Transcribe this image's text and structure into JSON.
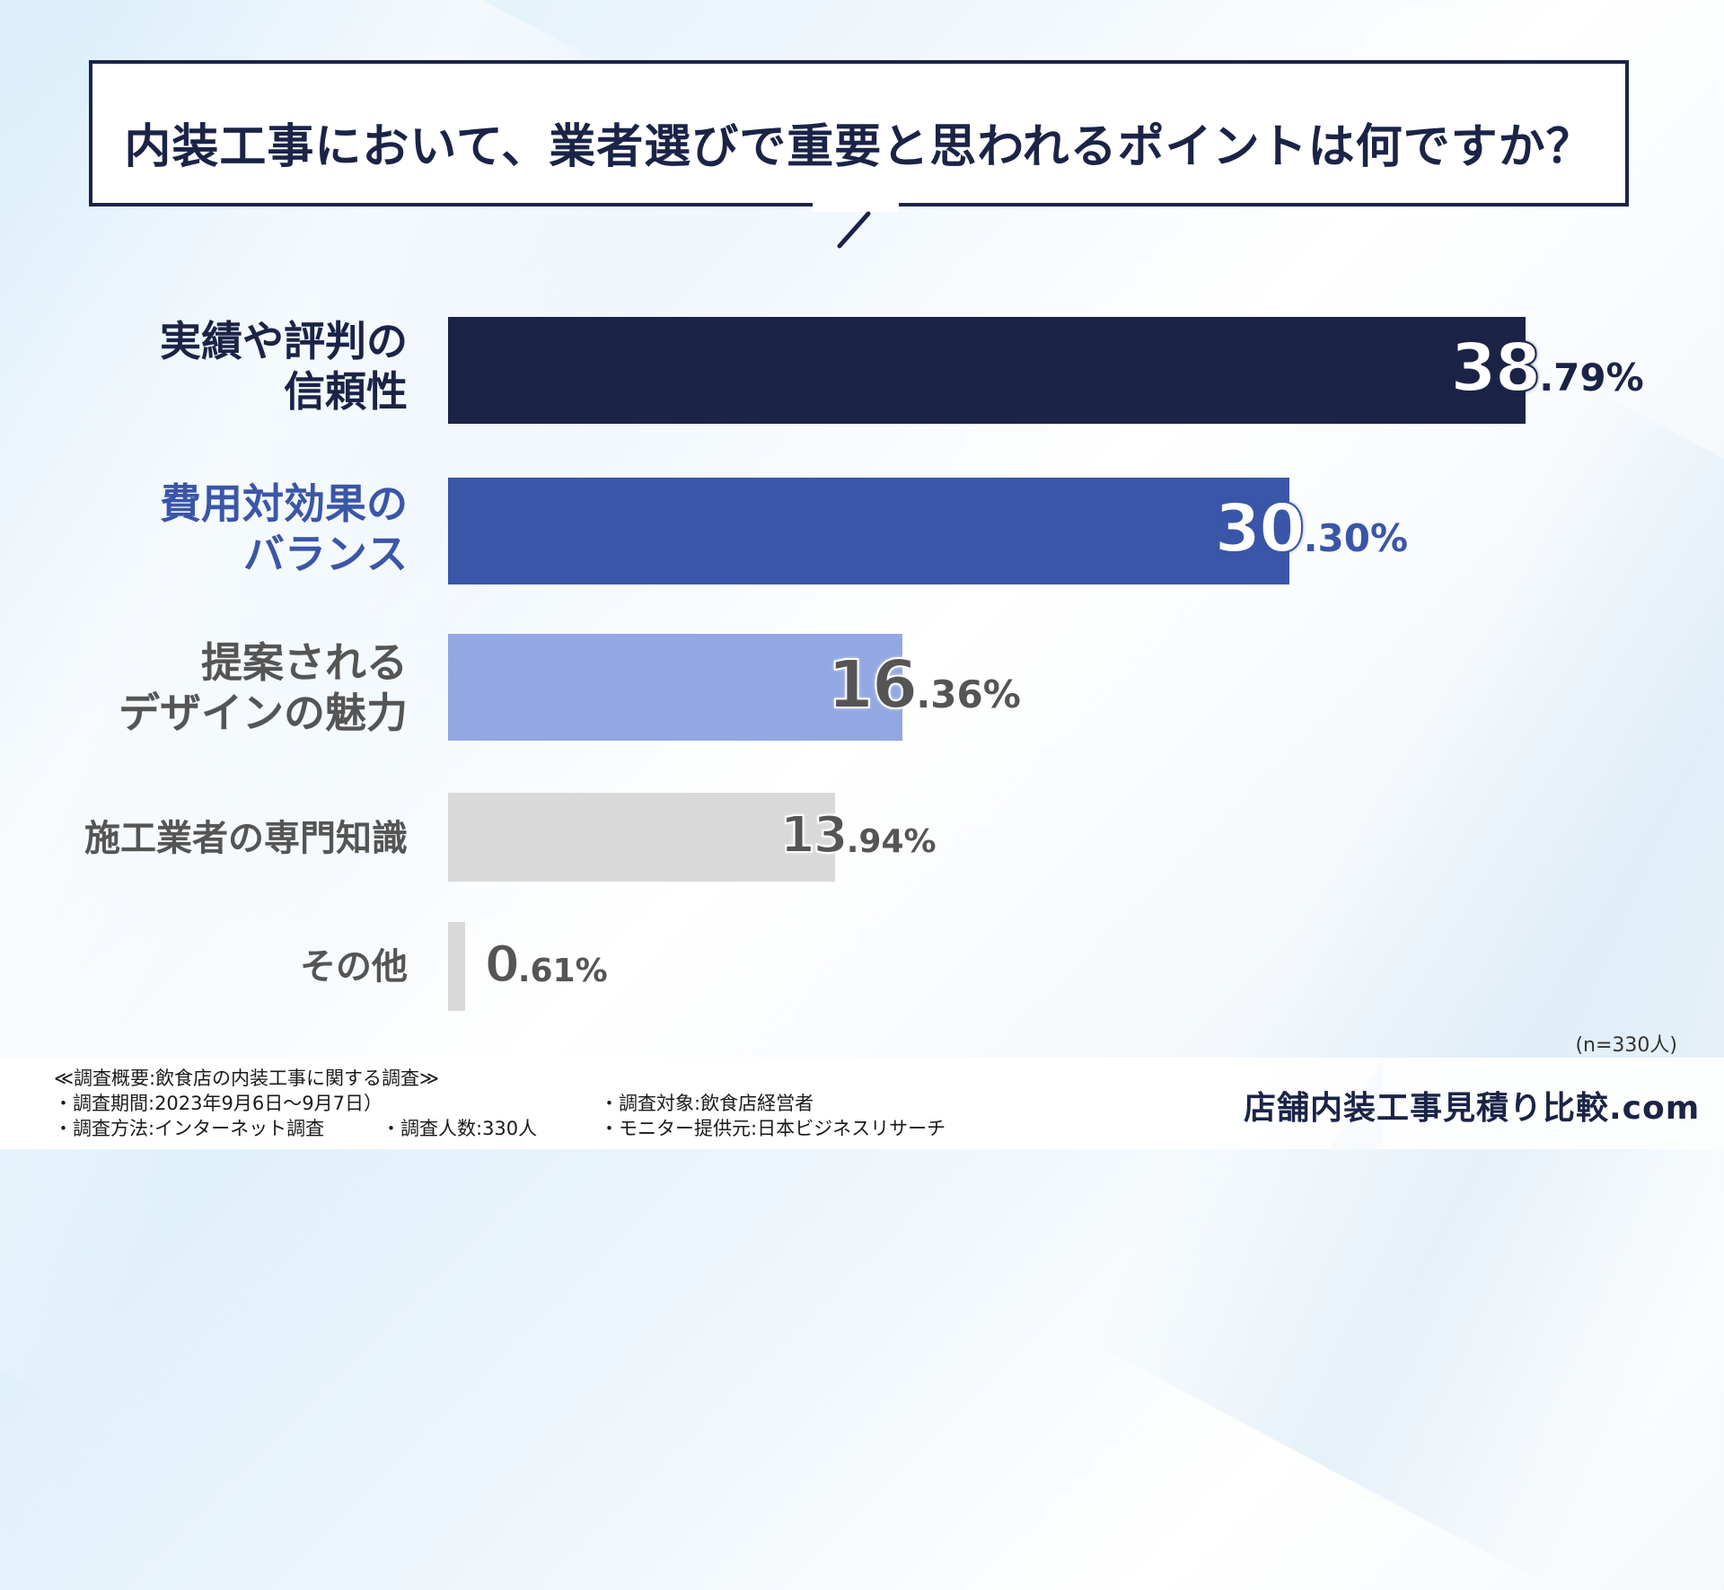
{
  "question": "内装工事において、業者選びで重要と思われるポイントは何ですか？",
  "chart_data": {
    "type": "bar",
    "orientation": "horizontal",
    "categories": [
      [
        "実績や評判の",
        "信頼性"
      ],
      [
        "費用対効果の",
        "バランス"
      ],
      [
        "提案される",
        "デザインの魅力"
      ],
      [
        "施工業者の専門知識"
      ],
      [
        "その他"
      ]
    ],
    "values": [
      38.79,
      30.3,
      16.36,
      13.94,
      0.61
    ],
    "value_labels": [
      {
        "int": "38",
        "dec": ".79%"
      },
      {
        "int": "30",
        "dec": ".30%"
      },
      {
        "int": "16",
        "dec": ".36%"
      },
      {
        "int": "13",
        "dec": ".94%"
      },
      {
        "int": "0",
        "dec": ".61%"
      }
    ],
    "unit": "%",
    "bar_colors": [
      "#1b2447",
      "#3a56a8",
      "#93a8e2",
      "#d9d9d9",
      "#d9d9d9"
    ],
    "label_colors": [
      "#1b2447",
      "#3a56a8",
      "#555555",
      "#555555",
      "#555555"
    ]
  },
  "sample_note": "(n=330人)",
  "survey": {
    "heading": "≪調査概要:飲食店の内装工事に関する調査≫",
    "period": "・調査期間:2023年9月6日〜9月7日）",
    "method": "・調査方法:インターネット調査",
    "count": "・調査人数:330人",
    "target": "・調査対象:飲食店経営者",
    "provider": "・モニター提供元:日本ビジネスリサーチ"
  },
  "brand": "店舗内装工事見積り比較.com"
}
